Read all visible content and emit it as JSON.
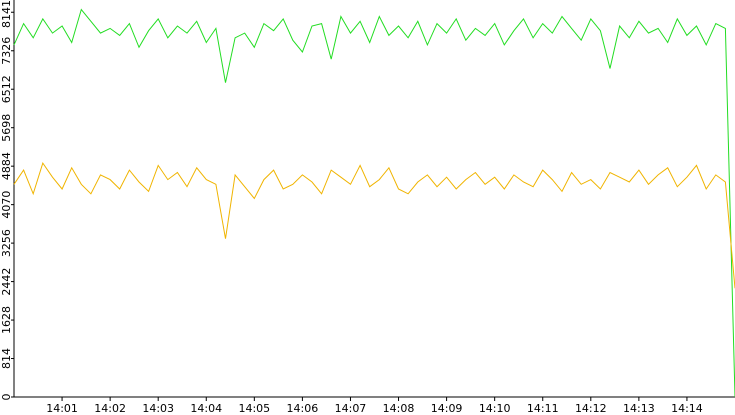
{
  "chart_data": {
    "type": "line",
    "x": [
      0,
      0.2,
      0.4,
      0.6,
      0.8,
      1,
      1.2,
      1.4,
      1.6,
      1.8,
      2,
      2.2,
      2.4,
      2.6,
      2.8,
      3,
      3.2,
      3.4,
      3.6,
      3.8,
      4,
      4.2,
      4.4,
      4.6,
      4.8,
      5,
      5.2,
      5.4,
      5.6,
      5.8,
      6,
      6.2,
      6.4,
      6.6,
      6.8,
      7,
      7.2,
      7.4,
      7.6,
      7.8,
      8,
      8.2,
      8.4,
      8.6,
      8.8,
      9,
      9.2,
      9.4,
      9.6,
      9.8,
      10,
      10.2,
      10.4,
      10.6,
      10.8,
      11,
      11.2,
      11.4,
      11.6,
      11.8,
      12,
      12.2,
      12.4,
      12.6,
      12.8,
      13,
      13.2,
      13.4,
      13.6,
      13.8,
      14,
      14.2,
      14.4,
      14.6,
      14.8,
      15
    ],
    "series": [
      {
        "color": "#22dd22",
        "values": [
          7450,
          7900,
          7600,
          8000,
          7700,
          7850,
          7500,
          8200,
          7950,
          7700,
          7800,
          7650,
          7900,
          7400,
          7750,
          8000,
          7600,
          7850,
          7700,
          7950,
          7500,
          7800,
          6650,
          7600,
          7700,
          7400,
          7900,
          7750,
          8000,
          7550,
          7300,
          7850,
          7900,
          7150,
          8050,
          7700,
          7950,
          7500,
          8050,
          7650,
          7850,
          7600,
          7950,
          7450,
          7900,
          7700,
          8000,
          7550,
          7800,
          7650,
          7900,
          7450,
          7750,
          8000,
          7600,
          7900,
          7700,
          8050,
          7800,
          7550,
          8000,
          7750,
          6950,
          7850,
          7600,
          7950,
          7700,
          7800,
          7500,
          8000,
          7650,
          7850,
          7450,
          7900,
          7800,
          0
        ]
      },
      {
        "color": "#f0b400",
        "values": [
          4500,
          4800,
          4300,
          4950,
          4650,
          4400,
          4850,
          4500,
          4300,
          4700,
          4600,
          4400,
          4800,
          4550,
          4350,
          4900,
          4600,
          4750,
          4450,
          4850,
          4600,
          4500,
          3350,
          4700,
          4450,
          4200,
          4600,
          4800,
          4400,
          4500,
          4700,
          4550,
          4300,
          4800,
          4650,
          4500,
          4900,
          4450,
          4600,
          4850,
          4400,
          4300,
          4550,
          4700,
          4450,
          4650,
          4400,
          4600,
          4750,
          4500,
          4650,
          4400,
          4700,
          4550,
          4450,
          4800,
          4600,
          4350,
          4750,
          4500,
          4600,
          4400,
          4750,
          4650,
          4550,
          4800,
          4500,
          4700,
          4850,
          4450,
          4650,
          4900,
          4400,
          4700,
          4550,
          2300
        ]
      }
    ],
    "xlim": [
      0,
      15
    ],
    "xticks": [
      {
        "value": 1,
        "label": "14:01"
      },
      {
        "value": 2,
        "label": "14:02"
      },
      {
        "value": 3,
        "label": "14:03"
      },
      {
        "value": 4,
        "label": "14:04"
      },
      {
        "value": 5,
        "label": "14:05"
      },
      {
        "value": 6,
        "label": "14:06"
      },
      {
        "value": 7,
        "label": "14:07"
      },
      {
        "value": 8,
        "label": "14:08"
      },
      {
        "value": 9,
        "label": "14:09"
      },
      {
        "value": 10,
        "label": "14:10"
      },
      {
        "value": 11,
        "label": "14:11"
      },
      {
        "value": 12,
        "label": "14:12"
      },
      {
        "value": 13,
        "label": "14:13"
      },
      {
        "value": 14,
        "label": "14:14"
      }
    ],
    "ylim": [
      0,
      8400
    ],
    "yticks": [
      0,
      814,
      1628,
      2442,
      3256,
      4070,
      4884,
      5698,
      6512,
      7326,
      8141
    ]
  }
}
